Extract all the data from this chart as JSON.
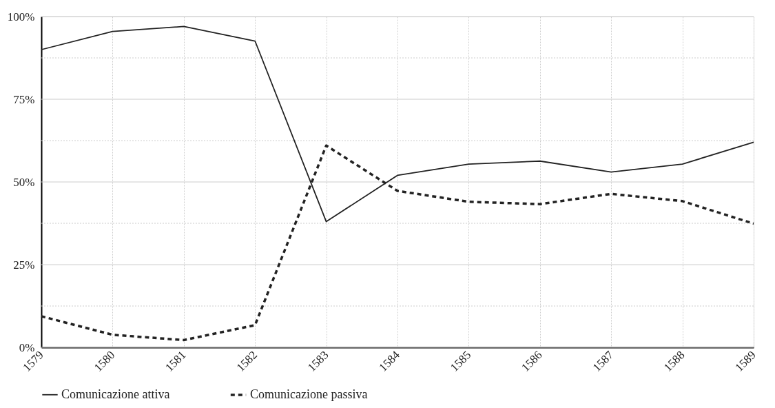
{
  "chart_data": {
    "type": "line",
    "categories": [
      "1579",
      "1580",
      "1581",
      "1582",
      "1583",
      "1584",
      "1585",
      "1586",
      "1587",
      "1588",
      "1589"
    ],
    "series": [
      {
        "name": "Comunicazione attiva",
        "color": "#222222",
        "line_style": "solid",
        "values": [
          90,
          95.5,
          97,
          92.6,
          38,
          52,
          55.4,
          56.3,
          53,
          55.4,
          62
        ]
      },
      {
        "name": "Comunicazione passiva",
        "color": "#222222",
        "line_style": "dashed",
        "values": [
          9.4,
          3.8,
          2.2,
          6.7,
          61,
          47.3,
          44,
          43.3,
          46.4,
          44.2,
          37.4
        ]
      }
    ],
    "ylim": [
      0,
      100
    ],
    "yticks": [
      {
        "value": 0,
        "label": "0%"
      },
      {
        "value": 12.5,
        "label": null
      },
      {
        "value": 25,
        "label": "25%"
      },
      {
        "value": 37.5,
        "label": null
      },
      {
        "value": 50,
        "label": "50%"
      },
      {
        "value": 62.5,
        "label": null
      },
      {
        "value": 75,
        "label": "75%"
      },
      {
        "value": 87.5,
        "label": null
      },
      {
        "value": 100,
        "label": "100%"
      }
    ],
    "grid": true,
    "legend": "bottom"
  }
}
